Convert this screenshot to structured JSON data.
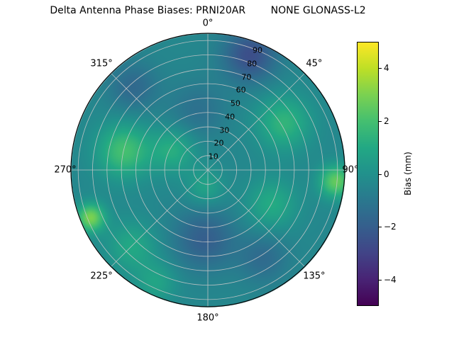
{
  "colors": {
    "background": "#ffffff",
    "grid": "#c8c8c8",
    "outline": "#000000",
    "text": "#000000"
  },
  "chart_data": {
    "type": "heatmap",
    "projection": "polar",
    "title": "Delta Antenna Phase Biases: PRNI20AR        NONE GLONASS-L2",
    "angular_ticks": [
      {
        "deg": 0,
        "label": "0°"
      },
      {
        "deg": 45,
        "label": "45°"
      },
      {
        "deg": 90,
        "label": "90°"
      },
      {
        "deg": 135,
        "label": "135°"
      },
      {
        "deg": 180,
        "label": "180°"
      },
      {
        "deg": 225,
        "label": "225°"
      },
      {
        "deg": 270,
        "label": "270°"
      },
      {
        "deg": 315,
        "label": "315°"
      }
    ],
    "radial_ticks": [
      10,
      20,
      30,
      40,
      50,
      60,
      70,
      80,
      90
    ],
    "radial_max": 95,
    "radial_label_angle_deg": 22.5,
    "colorbar": {
      "label": "Bias (mm)",
      "min": -5,
      "max": 5,
      "tick_values": [
        -4,
        -2,
        0,
        2,
        4
      ],
      "tick_labels": [
        "−4",
        "−2",
        "0",
        "2",
        "4"
      ],
      "colormap": "viridis"
    },
    "viridis_stops": [
      {
        "t": 0.0,
        "c": "#440154"
      },
      {
        "t": 0.1,
        "c": "#482475"
      },
      {
        "t": 0.2,
        "c": "#414487"
      },
      {
        "t": 0.3,
        "c": "#355f8d"
      },
      {
        "t": 0.4,
        "c": "#2a788e"
      },
      {
        "t": 0.5,
        "c": "#21918c"
      },
      {
        "t": 0.6,
        "c": "#22a884"
      },
      {
        "t": 0.7,
        "c": "#44bf70"
      },
      {
        "t": 0.8,
        "c": "#7ad151"
      },
      {
        "t": 0.9,
        "c": "#bddf26"
      },
      {
        "t": 1.0,
        "c": "#fde725"
      }
    ],
    "field": {
      "units": "mm",
      "base_mm": -0.4,
      "blobs": [
        {
          "az": 20,
          "r": 85,
          "amp": -2.2,
          "sigma": 13
        },
        {
          "az": 318,
          "r": 78,
          "amp": -1.2,
          "sigma": 12
        },
        {
          "az": 350,
          "r": 42,
          "amp": -0.9,
          "sigma": 14
        },
        {
          "az": 183,
          "r": 48,
          "amp": -1.6,
          "sigma": 15
        },
        {
          "az": 148,
          "r": 72,
          "amp": -1.1,
          "sigma": 12
        },
        {
          "az": 283,
          "r": 60,
          "amp": 2.4,
          "sigma": 13
        },
        {
          "az": 300,
          "r": 28,
          "amp": 1.6,
          "sigma": 11
        },
        {
          "az": 190,
          "r": 12,
          "amp": 1.2,
          "sigma": 9
        },
        {
          "az": 248,
          "r": 88,
          "amp": 3.4,
          "sigma": 7
        },
        {
          "az": 225,
          "r": 75,
          "amp": 1.4,
          "sigma": 12
        },
        {
          "az": 95,
          "r": 89,
          "amp": 3.0,
          "sigma": 8
        },
        {
          "az": 58,
          "r": 62,
          "amp": 1.9,
          "sigma": 13
        },
        {
          "az": 118,
          "r": 50,
          "amp": 1.5,
          "sigma": 12
        },
        {
          "az": 205,
          "r": 86,
          "amp": 1.2,
          "sigma": 10
        }
      ]
    }
  }
}
